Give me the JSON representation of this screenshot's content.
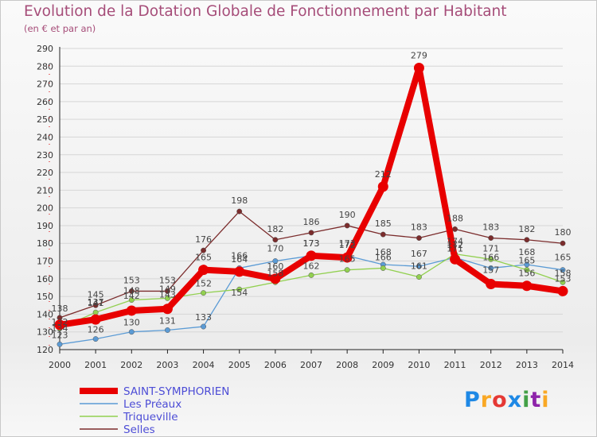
{
  "title": "Evolution de la Dotation Globale de Fonctionnement par Habitant",
  "subtitle": "(en € et par an)",
  "logo": {
    "letters": [
      "P",
      "r",
      "o",
      "x",
      "i",
      "t",
      "i"
    ],
    "colors": [
      "#1e88e5",
      "#f9a825",
      "#e53935",
      "#1e88e5",
      "#43a047",
      "#8e24aa",
      "#f9a825"
    ]
  },
  "chart_data": {
    "type": "line",
    "title": "Evolution de la Dotation Globale de Fonctionnement par Habitant",
    "ylabel": "(en € et par an)",
    "xlabel": "",
    "ylim": [
      120,
      290
    ],
    "ytick_step": 10,
    "grid": "horizontal",
    "categories": [
      "2000",
      "2001",
      "2002",
      "2003",
      "2004",
      "2005",
      "2006",
      "2007",
      "2008",
      "2009",
      "2010",
      "2011",
      "2012",
      "2013",
      "2014"
    ],
    "series": [
      {
        "name": "SAINT-SYMPHORIEN",
        "color": "#e80000",
        "width": "thick",
        "values": [
          134,
          137,
          142,
          143,
          165,
          164,
          160,
          173,
          172,
          212,
          279,
          171,
          157,
          156,
          153
        ]
      },
      {
        "name": "Les Préaux",
        "color": "#5b9bd5",
        "width": "thin",
        "values": [
          123,
          126,
          130,
          131,
          133,
          166,
          170,
          173,
          173,
          168,
          167,
          172,
          166,
          168,
          165
        ]
      },
      {
        "name": "Triqueville",
        "color": "#92d050",
        "width": "thin",
        "values": [
          132,
          141,
          148,
          149,
          152,
          154,
          158,
          162,
          165,
          166,
          161,
          174,
          171,
          165,
          158
        ]
      },
      {
        "name": "Selles",
        "color": "#7b2c2c",
        "width": "thin",
        "values": [
          138,
          145,
          153,
          153,
          176,
          198,
          182,
          186,
          190,
          185,
          183,
          188,
          183,
          182,
          180
        ]
      }
    ],
    "labels": [
      [
        {
          "t": "134",
          "dx": 0,
          "dy": 8
        },
        {
          "t": "137",
          "dx": 0,
          "dy": -18
        },
        {
          "t": "142",
          "dx": 0,
          "dy": -15
        },
        {
          "t": "143",
          "dx": 0,
          "dy": -14
        },
        {
          "t": "165",
          "dx": 0,
          "dy": -12
        },
        {
          "t": "164",
          "dx": 0,
          "dy": -12
        },
        {
          "t": "160",
          "dx": 0,
          "dy": -12
        },
        {
          "t": "173",
          "dx": 0,
          "dy": -12
        },
        {
          "t": "172",
          "dx": 0,
          "dy": -12
        },
        {
          "t": "212",
          "dx": 0,
          "dy": -12
        },
        {
          "t": "279",
          "dx": 0,
          "dy": -12
        },
        {
          "t": "171",
          "dx": 0,
          "dy": -10
        },
        {
          "t": "157",
          "dx": 0,
          "dy": -14
        },
        {
          "t": "156",
          "dx": 0,
          "dy": -12
        },
        {
          "t": "153",
          "dx": 0,
          "dy": -12
        }
      ],
      [
        {
          "t": "123",
          "dx": 0,
          "dy": -8
        },
        {
          "t": "126",
          "dx": 0,
          "dy": -8
        },
        {
          "t": "130",
          "dx": 0,
          "dy": -8
        },
        {
          "t": "131",
          "dx": 0,
          "dy": -8
        },
        {
          "t": "133",
          "dx": 0,
          "dy": -8
        },
        {
          "t": "166",
          "dx": 0,
          "dy": -12
        },
        {
          "t": "170",
          "dx": 0,
          "dy": -12
        },
        {
          "t": "173",
          "dx": 0,
          "dy": -12
        },
        {
          "t": "173",
          "dx": 0,
          "dy": -12
        },
        {
          "t": "168",
          "dx": 0,
          "dy": -12
        },
        {
          "t": "167",
          "dx": 0,
          "dy": -12
        },
        {
          "t": "172",
          "dx": 0,
          "dy": -12
        },
        {
          "t": "166",
          "dx": 0,
          "dy": -10
        },
        {
          "t": "168",
          "dx": 0,
          "dy": -12
        },
        {
          "t": "165",
          "dx": 0,
          "dy": -12
        }
      ],
      [
        {
          "t": "132",
          "dx": 0,
          "dy": -4
        },
        {
          "t": "141",
          "dx": 0,
          "dy": -8
        },
        {
          "t": "148",
          "dx": 0,
          "dy": -8
        },
        {
          "t": "149",
          "dx": 0,
          "dy": -8
        },
        {
          "t": "152",
          "dx": 0,
          "dy": -8
        },
        {
          "t": "154",
          "dx": 0,
          "dy": 8
        },
        {
          "t": "158",
          "dx": 0,
          "dy": -8
        },
        {
          "t": "162",
          "dx": 0,
          "dy": -8
        },
        {
          "t": "165",
          "dx": 0,
          "dy": -10
        },
        {
          "t": "166",
          "dx": 0,
          "dy": -10
        },
        {
          "t": "161",
          "dx": 0,
          "dy": -10
        },
        {
          "t": "174",
          "dx": 0,
          "dy": -12
        },
        {
          "t": "171",
          "dx": 0,
          "dy": -10
        },
        {
          "t": "165",
          "dx": 0,
          "dy": -8
        },
        {
          "t": "158",
          "dx": 0,
          "dy": -8
        }
      ],
      [
        {
          "t": "138",
          "dx": 0,
          "dy": -8
        },
        {
          "t": "145",
          "dx": 0,
          "dy": -10
        },
        {
          "t": "153",
          "dx": 0,
          "dy": -10
        },
        {
          "t": "153",
          "dx": 0,
          "dy": -10
        },
        {
          "t": "176",
          "dx": 0,
          "dy": -10
        },
        {
          "t": "198",
          "dx": 0,
          "dy": -10
        },
        {
          "t": "182",
          "dx": 0,
          "dy": -10
        },
        {
          "t": "186",
          "dx": 0,
          "dy": -10
        },
        {
          "t": "190",
          "dx": 0,
          "dy": -10
        },
        {
          "t": "185",
          "dx": 0,
          "dy": -10
        },
        {
          "t": "183",
          "dx": 0,
          "dy": -10
        },
        {
          "t": "188",
          "dx": 0,
          "dy": -10
        },
        {
          "t": "183",
          "dx": 0,
          "dy": -10
        },
        {
          "t": "182",
          "dx": 0,
          "dy": -10
        },
        {
          "t": "180",
          "dx": 0,
          "dy": -10
        }
      ]
    ]
  }
}
